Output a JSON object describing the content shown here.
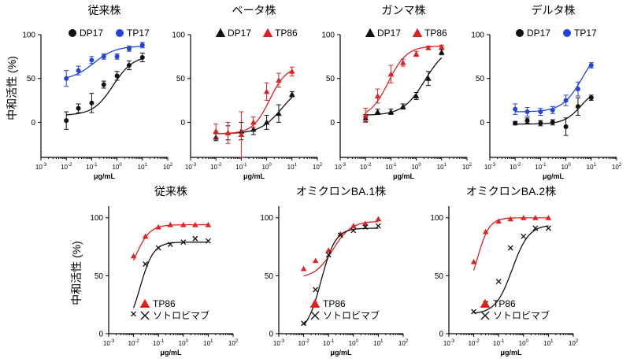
{
  "figure": {
    "row1_ylabel": "中和活性 (%)",
    "row2_ylabel": "中和活性 (%)"
  },
  "chart_data": [
    {
      "type": "scatter",
      "title": "従来株",
      "xlabel": "μg/mL",
      "ylabel": "中和活性 (%)",
      "x_scale": "log10",
      "xlim": [
        0.001,
        100
      ],
      "ylim": [
        -40,
        100
      ],
      "yticks": [
        0,
        50,
        100
      ],
      "xticks": [
        "10-3",
        "10-2",
        "10-1",
        "100",
        "101",
        "102"
      ],
      "legend_position": "top",
      "series": [
        {
          "name": "DP17",
          "marker": "circle",
          "color": "#111111",
          "x": [
            0.01,
            0.03,
            0.1,
            0.3,
            1,
            3,
            10
          ],
          "y": [
            2,
            16,
            22,
            43,
            53,
            65,
            74
          ],
          "err": [
            10,
            5,
            11,
            4,
            5,
            5,
            5
          ],
          "fit": {
            "bottom": 8,
            "top": 76,
            "ec50": 0.7,
            "hill": 1.1
          }
        },
        {
          "name": "TP17",
          "marker": "circle",
          "color": "#2244dd",
          "x": [
            0.01,
            0.03,
            0.1,
            0.3,
            1,
            3,
            10
          ],
          "y": [
            50,
            59,
            71,
            75,
            75,
            84,
            88
          ],
          "err": [
            9,
            5,
            4,
            3,
            3,
            3,
            3
          ],
          "fit": {
            "bottom": 48,
            "top": 87,
            "ec50": 0.12,
            "hill": 1.0
          }
        }
      ]
    },
    {
      "type": "scatter",
      "title": "ベータ株",
      "xlabel": "μg/mL",
      "ylabel": "中和活性 (%)",
      "x_scale": "log10",
      "xlim": [
        0.001,
        100
      ],
      "ylim": [
        -40,
        100
      ],
      "yticks": [
        0,
        50,
        100
      ],
      "xticks": [
        "10-3",
        "10-2",
        "10-1",
        "100",
        "101",
        "102"
      ],
      "legend_position": "top",
      "series": [
        {
          "name": "DP17",
          "marker": "triangle",
          "color": "#111111",
          "x": [
            0.01,
            0.03,
            0.1,
            0.3,
            1,
            3,
            10
          ],
          "y": [
            -17,
            -12,
            -10,
            -8,
            0,
            10,
            32
          ],
          "err": [
            4,
            8,
            10,
            6,
            8,
            10,
            3
          ],
          "fit": {
            "bottom": -13,
            "top": 45,
            "ec50": 4,
            "hill": 1.0
          }
        },
        {
          "name": "TP86",
          "marker": "triangle",
          "color": "#dd2222",
          "x": [
            0.01,
            0.03,
            0.1,
            0.3,
            1,
            3,
            10
          ],
          "y": [
            -10,
            -12,
            -14,
            0,
            35,
            48,
            58
          ],
          "err": [
            8,
            12,
            26,
            6,
            10,
            8,
            5
          ],
          "fit": {
            "bottom": -13,
            "top": 64,
            "ec50": 1.3,
            "hill": 1.3
          }
        }
      ]
    },
    {
      "type": "scatter",
      "title": "ガンマ株",
      "xlabel": "μg/mL",
      "ylabel": "中和活性 (%)",
      "x_scale": "log10",
      "xlim": [
        0.001,
        100
      ],
      "ylim": [
        -40,
        100
      ],
      "yticks": [
        0,
        50,
        100
      ],
      "xticks": [
        "10-3",
        "10-2",
        "10-1",
        "100",
        "101",
        "102"
      ],
      "legend_position": "top",
      "series": [
        {
          "name": "DP17",
          "marker": "triangle",
          "color": "#111111",
          "x": [
            0.01,
            0.03,
            0.1,
            0.3,
            1,
            3,
            10
          ],
          "y": [
            5,
            12,
            12,
            18,
            30,
            50,
            80
          ],
          "err": [
            4,
            3,
            3,
            3,
            4,
            8,
            3
          ],
          "fit": {
            "bottom": 8,
            "top": 88,
            "ec50": 2.2,
            "hill": 1.0
          }
        },
        {
          "name": "TP86",
          "marker": "triangle",
          "color": "#dd2222",
          "x": [
            0.01,
            0.03,
            0.1,
            0.3,
            1,
            3,
            10
          ],
          "y": [
            8,
            30,
            55,
            68,
            78,
            85,
            86
          ],
          "err": [
            8,
            8,
            10,
            4,
            3,
            2,
            2
          ],
          "fit": {
            "bottom": 5,
            "top": 87,
            "ec50": 0.08,
            "hill": 1.2
          }
        }
      ]
    },
    {
      "type": "scatter",
      "title": "デルタ株",
      "xlabel": "μg/mL",
      "ylabel": "中和活性 (%)",
      "x_scale": "log10",
      "xlim": [
        0.001,
        100
      ],
      "ylim": [
        -40,
        100
      ],
      "yticks": [
        0,
        50,
        100
      ],
      "xticks": [
        "10-3",
        "10-2",
        "10-1",
        "100",
        "101",
        "102"
      ],
      "legend_position": "top",
      "series": [
        {
          "name": "DP17",
          "marker": "circle",
          "color": "#111111",
          "x": [
            0.01,
            0.03,
            0.1,
            0.3,
            1,
            3,
            10
          ],
          "y": [
            -1,
            2,
            -1,
            0,
            -5,
            18,
            28
          ],
          "err": [
            2,
            3,
            3,
            3,
            10,
            10,
            3
          ],
          "fit": {
            "bottom": -2,
            "top": 40,
            "ec50": 4,
            "hill": 1.3
          }
        },
        {
          "name": "TP17",
          "marker": "circle",
          "color": "#2244dd",
          "x": [
            0.01,
            0.03,
            0.1,
            0.3,
            1,
            3,
            10
          ],
          "y": [
            15,
            12,
            12,
            14,
            25,
            38,
            65
          ],
          "err": [
            6,
            5,
            4,
            4,
            6,
            8,
            3
          ],
          "fit": {
            "bottom": 12,
            "top": 90,
            "ec50": 4.5,
            "hill": 1.1
          }
        }
      ]
    },
    {
      "type": "scatter",
      "title": "従来株",
      "xlabel": "μg/mL",
      "ylabel": "中和活性 (%)",
      "x_scale": "log10",
      "xlim": [
        0.001,
        100
      ],
      "ylim": [
        0,
        110
      ],
      "yticks": [
        0,
        50,
        100
      ],
      "xticks": [
        "10-3",
        "10-2",
        "10-1",
        "100",
        "101",
        "102"
      ],
      "legend_position": "bottom-left",
      "series": [
        {
          "name": "TP86",
          "marker": "triangle",
          "color": "#dd2222",
          "x": [
            0.01,
            0.03,
            0.1,
            0.3,
            1,
            3,
            10
          ],
          "y": [
            67,
            84,
            92,
            94,
            94,
            94,
            94
          ],
          "fit": {
            "bottom": 40,
            "top": 94,
            "ec50": 0.012,
            "hill": 1.5
          }
        },
        {
          "name": "ソトロビマブ",
          "marker": "x",
          "color": "#111111",
          "x": [
            0.01,
            0.03,
            0.1,
            0.3,
            1,
            3,
            10
          ],
          "y": [
            17,
            60,
            74,
            77,
            79,
            82,
            80
          ],
          "fit": {
            "bottom": 0,
            "top": 79,
            "ec50": 0.018,
            "hill": 1.6
          }
        }
      ]
    },
    {
      "type": "scatter",
      "title": "オミクロンBA.1株",
      "xlabel": "μg/mL",
      "ylabel": "中和活性 (%)",
      "x_scale": "log10",
      "xlim": [
        0.001,
        100
      ],
      "ylim": [
        0,
        110
      ],
      "yticks": [
        0,
        50,
        100
      ],
      "xticks": [
        "10-3",
        "10-2",
        "10-1",
        "100",
        "101",
        "102"
      ],
      "legend_position": "bottom-left",
      "series": [
        {
          "name": "TP86",
          "marker": "triangle",
          "color": "#dd2222",
          "x": [
            0.01,
            0.03,
            0.1,
            0.3,
            1,
            3,
            10
          ],
          "y": [
            56,
            63,
            72,
            86,
            93,
            95,
            99
          ],
          "fit": {
            "bottom": 48,
            "top": 97,
            "ec50": 0.15,
            "hill": 1.2
          }
        },
        {
          "name": "ソトロビマブ",
          "marker": "x",
          "color": "#111111",
          "x": [
            0.01,
            0.03,
            0.1,
            0.3,
            1,
            3,
            10
          ],
          "y": [
            9,
            38,
            68,
            85,
            89,
            92,
            93
          ],
          "fit": {
            "bottom": 0,
            "top": 91,
            "ec50": 0.05,
            "hill": 1.5
          }
        }
      ]
    },
    {
      "type": "scatter",
      "title": "オミクロンBA.2株",
      "xlabel": "μg/mL",
      "ylabel": "中和活性 (%)",
      "x_scale": "log10",
      "xlim": [
        0.001,
        100
      ],
      "ylim": [
        0,
        110
      ],
      "yticks": [
        0,
        50,
        100
      ],
      "xticks": [
        "10-3",
        "10-2",
        "10-1",
        "100",
        "101",
        "102"
      ],
      "legend_position": "bottom-left",
      "series": [
        {
          "name": "TP86",
          "marker": "triangle",
          "color": "#dd2222",
          "x": [
            0.01,
            0.03,
            0.1,
            0.3,
            1,
            3,
            10
          ],
          "y": [
            62,
            88,
            97,
            99,
            100,
            100,
            100
          ],
          "fit": {
            "bottom": 30,
            "top": 100,
            "ec50": 0.014,
            "hill": 1.8
          }
        },
        {
          "name": "ソトロビマブ",
          "marker": "x",
          "color": "#111111",
          "x": [
            0.01,
            0.03,
            0.1,
            0.3,
            1,
            3,
            10
          ],
          "y": [
            19,
            26,
            45,
            74,
            84,
            91,
            91
          ],
          "fit": {
            "bottom": 17,
            "top": 94,
            "ec50": 0.35,
            "hill": 1.3
          }
        }
      ]
    }
  ]
}
